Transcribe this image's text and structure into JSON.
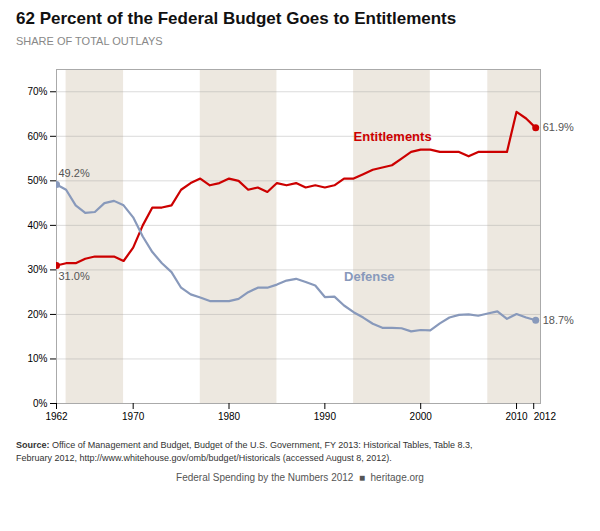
{
  "chart_data": {
    "type": "line",
    "title": "62 Percent of the Federal Budget Goes to Entitlements",
    "subtitle": "SHARE OF TOTAL OUTLAYS",
    "source": "Source: Office of Management and Budget, Budget of the U.S. Government, FY 2013: Historical Tables, Table 8.3,\nFebruary 2012, http://www.whitehouse.gov/omb/budget/Historicals (accessed August 8, 2012).",
    "footer": "Federal Spending by the Numbers 2012  ■  heritage.org",
    "x": [
      1962,
      1963,
      1964,
      1965,
      1966,
      1967,
      1968,
      1969,
      1970,
      1971,
      1972,
      1973,
      1974,
      1975,
      1976,
      1977,
      1978,
      1979,
      1980,
      1981,
      1982,
      1983,
      1984,
      1985,
      1986,
      1987,
      1988,
      1989,
      1990,
      1991,
      1992,
      1993,
      1994,
      1995,
      1996,
      1997,
      1998,
      1999,
      2000,
      2001,
      2002,
      2003,
      2004,
      2005,
      2006,
      2007,
      2008,
      2009,
      2010,
      2011,
      2012
    ],
    "series": [
      {
        "name": "Entitlements",
        "color": "#cc0000",
        "values": [
          31.0,
          31.5,
          31.5,
          32.5,
          33.0,
          33.0,
          33.0,
          32.0,
          35.0,
          40.0,
          44.0,
          44.0,
          44.5,
          48.0,
          49.5,
          50.5,
          49.0,
          49.5,
          50.5,
          50.0,
          48.0,
          48.5,
          47.5,
          49.5,
          49.0,
          49.5,
          48.5,
          49.0,
          48.5,
          49.0,
          50.5,
          50.5,
          51.5,
          52.5,
          53.0,
          53.5,
          55.0,
          56.5,
          57.0,
          57.0,
          56.5,
          56.5,
          56.5,
          55.5,
          56.5,
          56.5,
          56.5,
          56.5,
          65.5,
          64.0,
          61.9
        ],
        "value_labels": [
          "31.0%",
          null,
          null,
          null,
          null,
          null,
          null,
          null,
          null,
          null,
          null,
          null,
          null,
          null,
          null,
          null,
          null,
          null,
          null,
          null,
          null,
          null,
          null,
          null,
          null,
          null,
          null,
          null,
          null,
          null,
          null,
          null,
          null,
          null,
          null,
          null,
          null,
          null,
          null,
          null,
          null,
          null,
          null,
          null,
          null,
          null,
          null,
          null,
          null,
          null,
          "61.9%"
        ]
      },
      {
        "name": "Defense",
        "color": "#8899bb",
        "values": [
          49.2,
          48.0,
          44.5,
          42.8,
          43.0,
          45.0,
          45.5,
          44.5,
          41.8,
          37.5,
          34.0,
          31.5,
          29.5,
          26.0,
          24.5,
          23.8,
          23.0,
          23.0,
          23.0,
          23.5,
          25.0,
          26.0,
          26.0,
          26.7,
          27.6,
          28.0,
          27.3,
          26.5,
          23.9,
          24.0,
          22.0,
          20.5,
          19.3,
          17.9,
          17.0,
          17.0,
          16.9,
          16.2,
          16.5,
          16.4,
          18.0,
          19.3,
          19.9,
          20.0,
          19.7,
          20.2,
          20.7,
          19.0,
          20.1,
          19.3,
          18.7
        ],
        "value_labels": [
          "49.2%",
          null,
          null,
          null,
          null,
          null,
          null,
          null,
          null,
          null,
          null,
          null,
          null,
          null,
          null,
          null,
          null,
          null,
          null,
          null,
          null,
          null,
          null,
          null,
          null,
          null,
          null,
          null,
          null,
          null,
          null,
          null,
          null,
          null,
          null,
          null,
          null,
          null,
          null,
          null,
          null,
          null,
          null,
          null,
          null,
          null,
          null,
          null,
          null,
          null,
          "18.7%"
        ]
      }
    ],
    "annotations": [
      {
        "text": "Entitlements",
        "x": 1993,
        "y": 59,
        "color": "#cc0000"
      },
      {
        "text": "Defense",
        "x": 1992,
        "y": 27.5,
        "color": "#8899bb"
      }
    ],
    "bands": {
      "ranges": [
        [
          1963,
          1969
        ],
        [
          1977,
          1985
        ],
        [
          1993,
          2001
        ],
        [
          2007,
          2013
        ]
      ],
      "color": "#ede8e0"
    },
    "xlim": [
      1962,
      2012.5
    ],
    "xticks": [
      1962,
      1970,
      1980,
      1990,
      2000,
      2010,
      2012
    ],
    "ylim": [
      0,
      75
    ],
    "yticks": [
      {
        "value": 0,
        "label": "0%"
      },
      {
        "value": 10,
        "label": "10%"
      },
      {
        "value": 20,
        "label": "20%"
      },
      {
        "value": 30,
        "label": "30%"
      },
      {
        "value": 40,
        "label": "40%"
      },
      {
        "value": 50,
        "label": "50%"
      },
      {
        "value": 60,
        "label": "60%"
      },
      {
        "value": 70,
        "label": "70%"
      }
    ],
    "grid": true
  }
}
